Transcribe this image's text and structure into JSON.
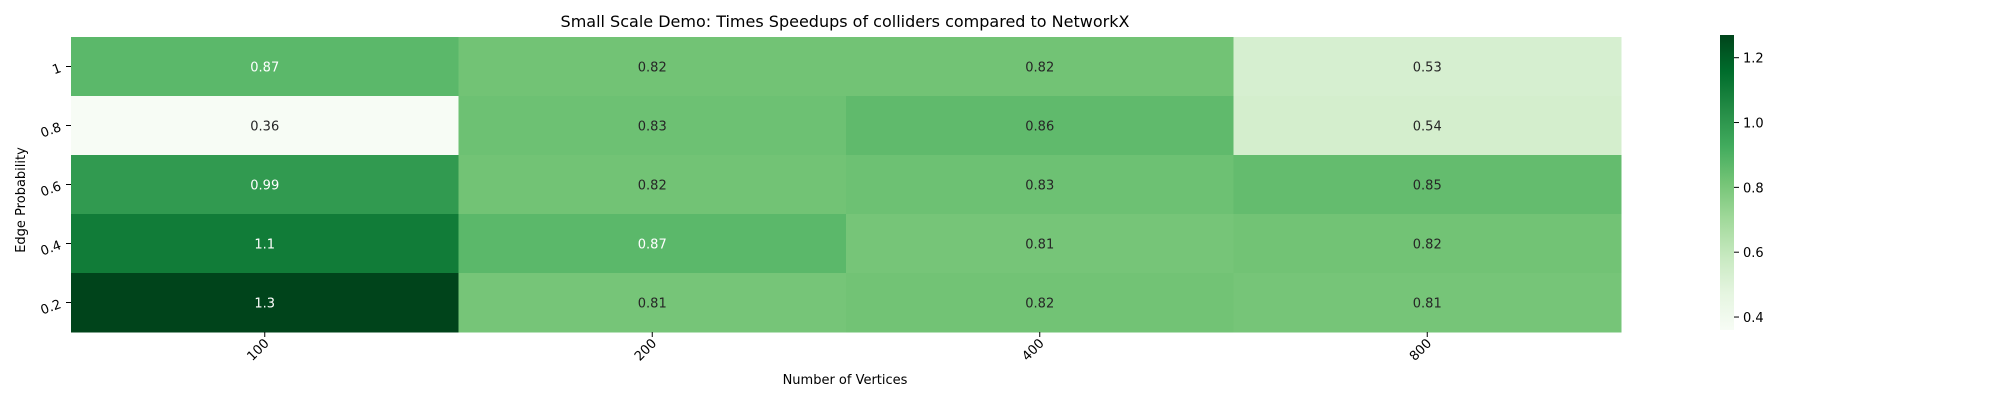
{
  "chart_data": {
    "type": "heatmap",
    "title": "Small Scale Demo: Times Speedups of colliders compared to NetworkX",
    "xlabel": "Number of Vertices",
    "ylabel": "Edge Probability",
    "x_categories": [
      "100",
      "200",
      "400",
      "800"
    ],
    "y_categories": [
      "1",
      "0.8",
      "0.6",
      "0.4",
      "0.2"
    ],
    "values": [
      [
        0.87,
        0.82,
        0.82,
        0.53
      ],
      [
        0.36,
        0.83,
        0.86,
        0.54
      ],
      [
        0.99,
        0.82,
        0.83,
        0.85
      ],
      [
        1.1,
        0.87,
        0.81,
        0.82
      ],
      [
        1.3,
        0.81,
        0.82,
        0.81
      ]
    ],
    "labels": [
      [
        "0.87",
        "0.82",
        "0.82",
        "0.53"
      ],
      [
        "0.36",
        "0.83",
        "0.86",
        "0.54"
      ],
      [
        "0.99",
        "0.82",
        "0.83",
        "0.85"
      ],
      [
        "1.1",
        "0.87",
        "0.81",
        "0.82"
      ],
      [
        "1.3",
        "0.81",
        "0.82",
        "0.81"
      ]
    ],
    "true_values": [
      [
        0.87,
        0.82,
        0.82,
        0.53
      ],
      [
        0.36,
        0.83,
        0.86,
        0.54
      ],
      [
        0.99,
        0.82,
        0.83,
        0.85
      ],
      [
        1.1,
        0.87,
        0.81,
        0.82
      ],
      [
        1.27,
        0.81,
        0.82,
        0.81
      ]
    ],
    "colormap": "Greens",
    "colorbar": {
      "range": [
        0.36,
        1.27
      ],
      "ticks": [
        0.4,
        0.6,
        0.8,
        1.0,
        1.2
      ],
      "tick_labels": [
        "0.4",
        "0.6",
        "0.8",
        "1.0",
        "1.2"
      ]
    },
    "grid": false,
    "legend": "colorbar-right",
    "colors": {
      "greens": [
        "#f7fcf5",
        "#e5f5e0",
        "#c7e9c0",
        "#a1d99b",
        "#74c476",
        "#41ab5d",
        "#238b45",
        "#006d2c",
        "#00441b"
      ],
      "text_light": "#ffffff",
      "text_dark": "#262626"
    }
  }
}
